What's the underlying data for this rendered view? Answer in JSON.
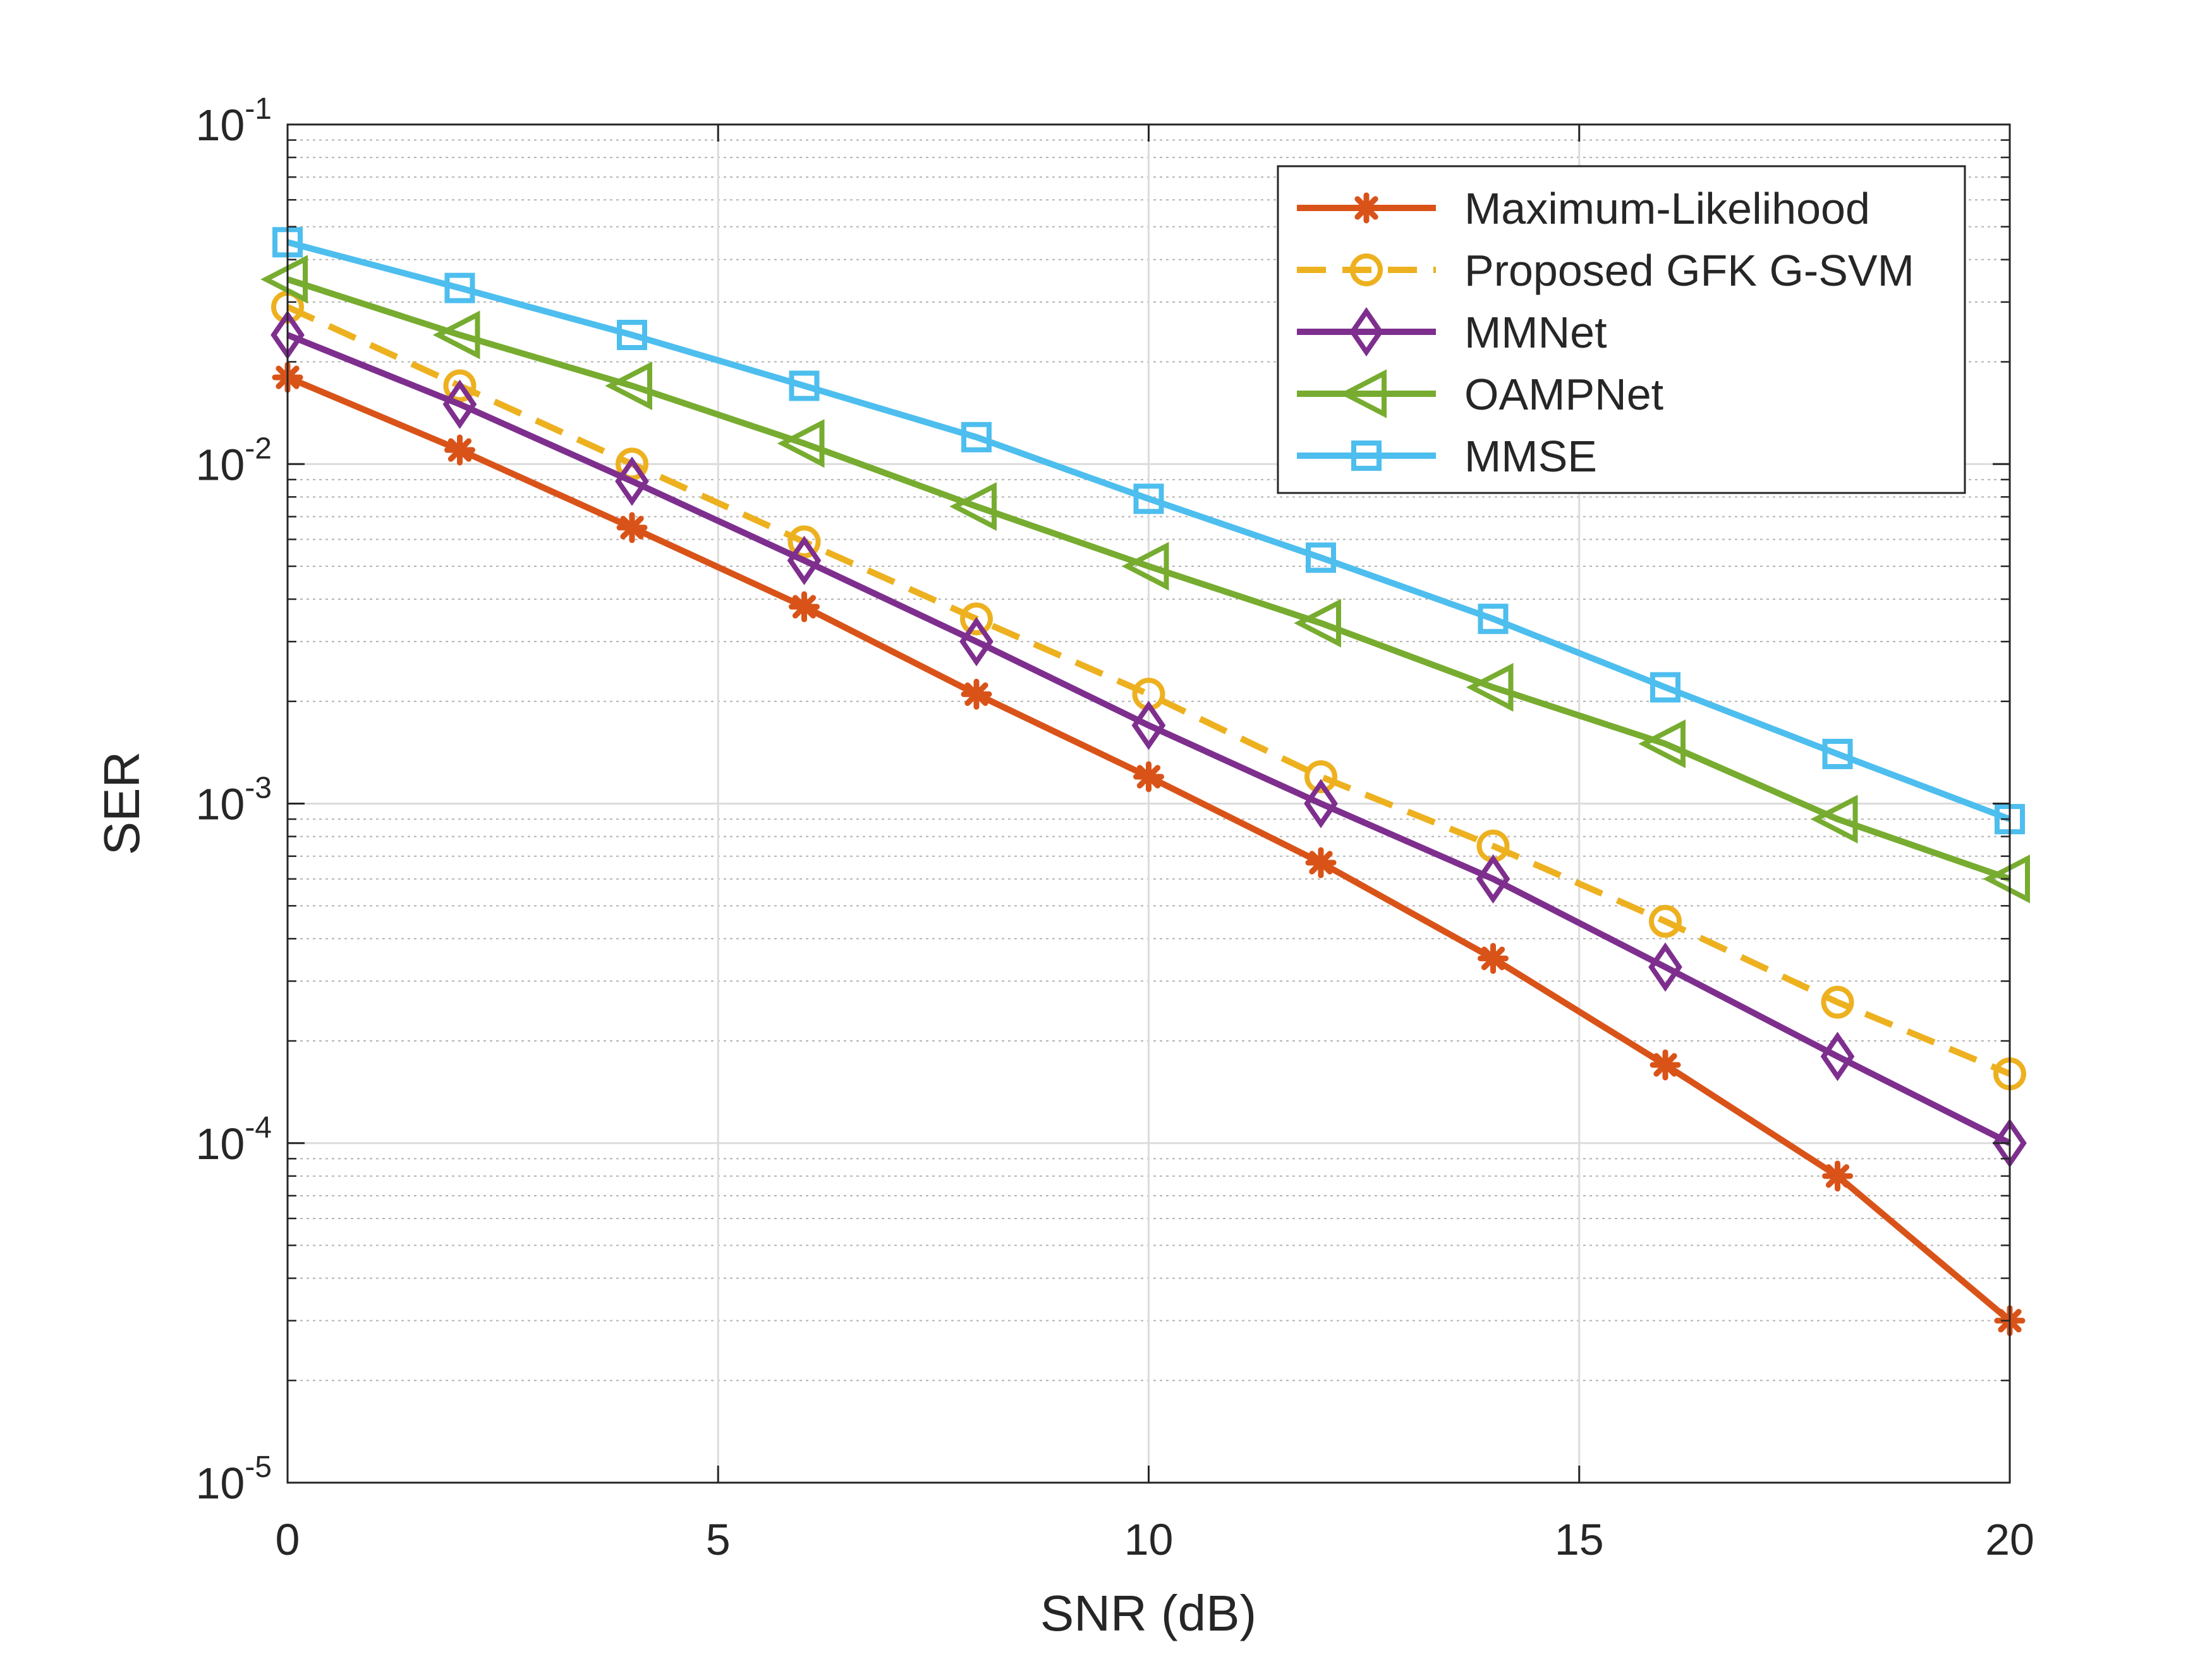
{
  "chart_data": {
    "type": "line",
    "title": "",
    "xlabel": "SNR (dB)",
    "ylabel": "SER",
    "xlim": [
      0,
      20
    ],
    "ylim": [
      1e-05,
      0.1
    ],
    "yscale": "log",
    "grid": true,
    "x_ticks": [
      0,
      5,
      10,
      15,
      20
    ],
    "x_tick_labels": [
      "0",
      "5",
      "10",
      "15",
      "20"
    ],
    "y_ticks": [
      {
        "value": 0.1,
        "base": "10",
        "exp": "-1"
      },
      {
        "value": 0.01,
        "base": "10",
        "exp": "-2"
      },
      {
        "value": 0.001,
        "base": "10",
        "exp": "-3"
      },
      {
        "value": 0.0001,
        "base": "10",
        "exp": "-4"
      },
      {
        "value": 1e-05,
        "base": "10",
        "exp": "-5"
      }
    ],
    "legend_position": "top-right",
    "x": [
      0,
      2,
      4,
      6,
      8,
      10,
      12,
      14,
      16,
      18,
      20
    ],
    "series": [
      {
        "name": "Maximum-Likelihood",
        "color": "#D95319",
        "marker": "asterisk",
        "dashed": false,
        "values": [
          0.018,
          0.011,
          0.0065,
          0.0038,
          0.0021,
          0.0012,
          0.00067,
          0.00035,
          0.00017,
          8e-05,
          3e-05
        ]
      },
      {
        "name": "Proposed GFK G-SVM",
        "color": "#EDB120",
        "marker": "circle",
        "dashed": true,
        "values": [
          0.029,
          0.017,
          0.01,
          0.0059,
          0.0035,
          0.0021,
          0.0012,
          0.00075,
          0.00045,
          0.00026,
          0.00016
        ]
      },
      {
        "name": "MMNet",
        "color": "#7E2F8E",
        "marker": "diamond",
        "dashed": false,
        "values": [
          0.024,
          0.015,
          0.0089,
          0.0052,
          0.003,
          0.0017,
          0.001,
          0.0006,
          0.00033,
          0.00018,
          0.0001
        ]
      },
      {
        "name": "OAMPNet",
        "color": "#77AC30",
        "marker": "triangle-left",
        "dashed": false,
        "values": [
          0.035,
          0.024,
          0.017,
          0.0115,
          0.0075,
          0.005,
          0.0034,
          0.0022,
          0.0015,
          0.0009,
          0.0006
        ]
      },
      {
        "name": "MMSE",
        "color": "#4DBEEE",
        "marker": "square",
        "dashed": false,
        "values": [
          0.045,
          0.033,
          0.024,
          0.017,
          0.012,
          0.0079,
          0.0053,
          0.0035,
          0.0022,
          0.0014,
          0.0009
        ]
      }
    ]
  }
}
